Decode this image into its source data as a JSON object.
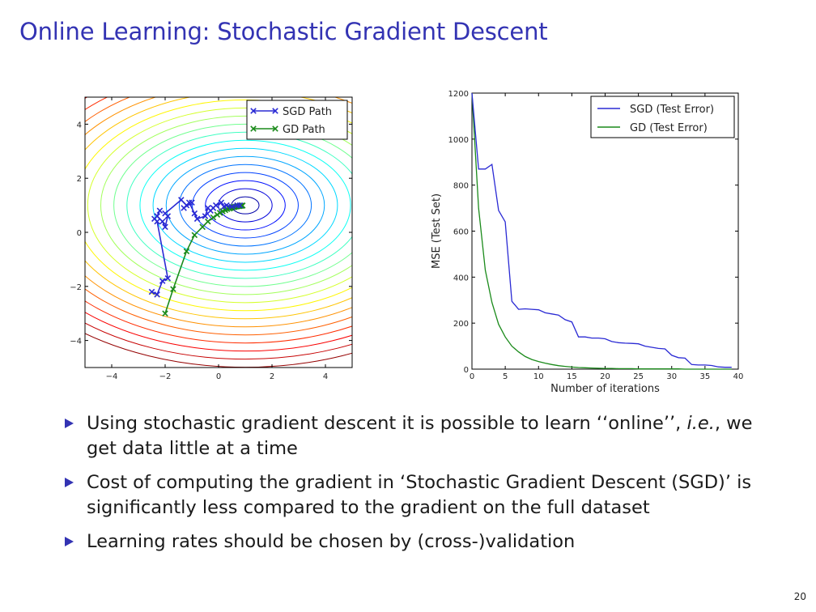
{
  "slide": {
    "title": "Online Learning: Stochastic Gradient Descent",
    "page_number": "20",
    "bullets": [
      {
        "before": "Using stochastic gradient descent it is possible to learn ‘‘online’’, ",
        "italic": "i.e.",
        "after": ", we get data little at a time"
      },
      {
        "before": "Cost of computing the gradient in ‘Stochastic Gradient Descent (SGD)’ is significantly less compared to the gradient on the full dataset",
        "italic": "",
        "after": ""
      },
      {
        "before": "Learning rates should be chosen by (cross-)validation",
        "italic": "",
        "after": ""
      }
    ]
  },
  "chart_data": [
    {
      "type": "scatter",
      "title": "",
      "xlabel": "",
      "ylabel": "",
      "xlim": [
        -5,
        5
      ],
      "ylim": [
        -5,
        5
      ],
      "x_ticks": [
        "−4",
        "−2",
        "0",
        "2",
        "4"
      ],
      "y_ticks": [
        "−4",
        "−2",
        "0",
        "2",
        "4"
      ],
      "legend_position": "top-right",
      "contour_center": [
        1,
        1
      ],
      "colors": {
        "sgd": "#2a2ad4",
        "gd": "#1a8a1a"
      },
      "series": [
        {
          "name": "SGD Path",
          "marker": "x",
          "x": [
            -2.5,
            -2.3,
            -2.1,
            -1.9,
            -2.3,
            -2.4,
            -2.3,
            -2.2,
            -2.3,
            -2.1,
            -2.0,
            -1.9,
            -2.0,
            -1.4,
            -1.2,
            -1.0,
            -1.3,
            -1.1,
            -0.9,
            -0.8,
            -0.5,
            -0.4,
            -0.3,
            -0.2,
            -0.1,
            0.1,
            0.2,
            0.3,
            0.5,
            0.7,
            0.8
          ],
          "y": [
            -2.2,
            -2.3,
            -1.8,
            -1.7,
            0.4,
            0.5,
            0.6,
            0.8,
            0.6,
            0.4,
            0.2,
            0.6,
            0.7,
            1.2,
            1.0,
            1.1,
            0.9,
            1.1,
            0.7,
            0.5,
            0.6,
            0.9,
            0.8,
            0.9,
            1.0,
            1.1,
            0.95,
            1.0,
            0.95,
            1.0,
            1.0
          ]
        },
        {
          "name": "GD Path",
          "marker": "x",
          "x": [
            -2.0,
            -1.7,
            -1.2,
            -0.9,
            -0.6,
            -0.4,
            -0.2,
            -0.05,
            0.05,
            0.15,
            0.25,
            0.32,
            0.4,
            0.45,
            0.5,
            0.56,
            0.6,
            0.65,
            0.7,
            0.74,
            0.78,
            0.82,
            0.85,
            0.88,
            0.9
          ],
          "y": [
            -3.0,
            -2.1,
            -0.7,
            -0.1,
            0.2,
            0.4,
            0.55,
            0.65,
            0.72,
            0.78,
            0.82,
            0.86,
            0.88,
            0.9,
            0.92,
            0.93,
            0.94,
            0.95,
            0.96,
            0.97,
            0.97,
            0.98,
            0.98,
            0.99,
            0.99
          ]
        }
      ]
    },
    {
      "type": "line",
      "title": "",
      "xlabel": "Number of iterations",
      "ylabel": "MSE (Test Set)",
      "xlim": [
        0,
        40
      ],
      "ylim": [
        0,
        1200
      ],
      "x_ticks": [
        0,
        5,
        10,
        15,
        20,
        25,
        30,
        35,
        40
      ],
      "y_ticks": [
        0,
        200,
        400,
        600,
        800,
        1000,
        1200
      ],
      "legend_position": "top-right",
      "colors": {
        "sgd": "#2a2ad4",
        "gd": "#1a8a1a"
      },
      "x": [
        0,
        1,
        2,
        3,
        4,
        5,
        6,
        7,
        8,
        9,
        10,
        11,
        12,
        13,
        14,
        15,
        16,
        17,
        18,
        19,
        20,
        21,
        22,
        23,
        24,
        25,
        26,
        27,
        28,
        29,
        30,
        31,
        32,
        33,
        34,
        35,
        36,
        37,
        38,
        39
      ],
      "series": [
        {
          "name": "SGD (Test Error)",
          "values": [
            1200,
            870,
            870,
            890,
            690,
            640,
            295,
            260,
            262,
            260,
            258,
            245,
            240,
            235,
            215,
            205,
            140,
            140,
            135,
            135,
            132,
            120,
            115,
            113,
            112,
            110,
            100,
            95,
            90,
            88,
            60,
            50,
            48,
            20,
            18,
            18,
            16,
            10,
            8,
            8
          ]
        },
        {
          "name": "GD  (Test Error)",
          "values": [
            1200,
            700,
            430,
            290,
            195,
            140,
            100,
            75,
            55,
            42,
            33,
            26,
            20,
            15,
            12,
            9,
            7,
            6,
            5,
            4,
            3,
            3,
            2,
            2,
            2,
            1,
            1,
            1,
            1,
            1,
            1,
            1,
            0,
            0,
            0,
            0,
            0,
            0,
            0,
            0
          ]
        }
      ]
    }
  ]
}
